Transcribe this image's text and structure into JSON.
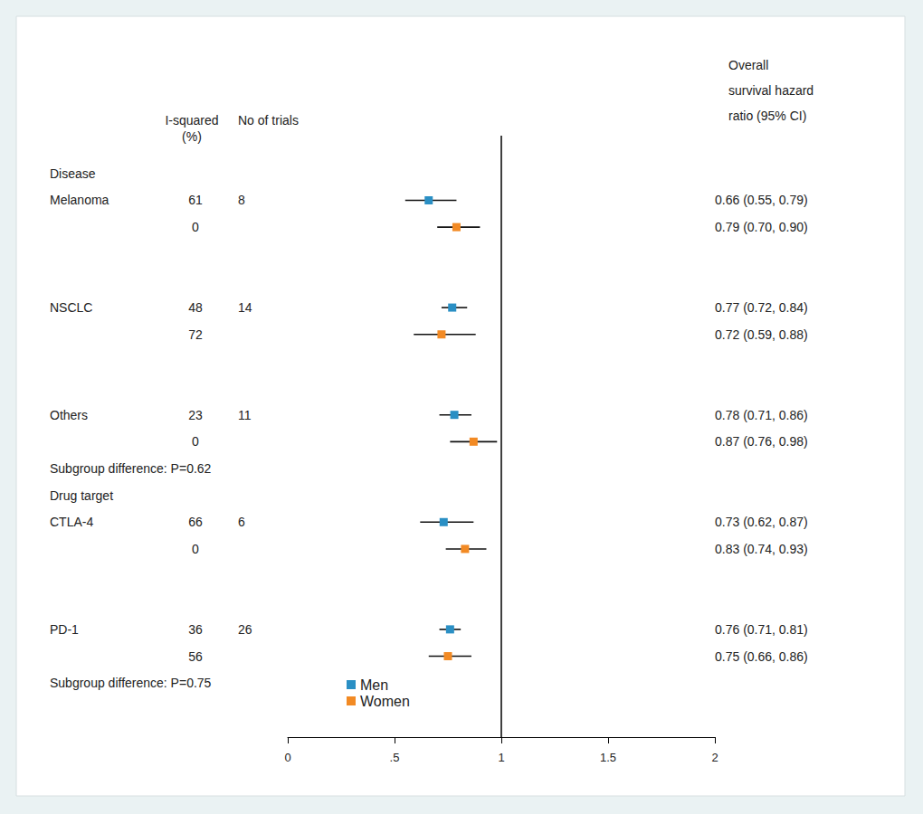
{
  "chart_data": {
    "type": "forest",
    "column_headers": {
      "i_squared": [
        "I-squared",
        "(%)"
      ],
      "trials": "No of trials",
      "estimate": [
        "Overall",
        "survival hazard",
        "ratio (95% CI)"
      ]
    },
    "categories": [
      "Disease",
      "Melanoma",
      null,
      null,
      null,
      "NSCLC",
      null,
      null,
      null,
      "Others",
      null,
      "Subgroup difference: P=0.62",
      "Drug target",
      "CTLA-4",
      null,
      null,
      null,
      "PD-1",
      null,
      "Subgroup difference: P=0.75"
    ],
    "trials": [
      null,
      8,
      null,
      null,
      null,
      14,
      null,
      null,
      null,
      11,
      null,
      null,
      null,
      6,
      null,
      null,
      null,
      26,
      null,
      null
    ],
    "series": [
      {
        "name": "Men",
        "color": "#2a8fc4",
        "values": [
          null,
          0.66,
          null,
          null,
          null,
          0.77,
          null,
          null,
          null,
          0.78,
          null,
          null,
          null,
          0.73,
          null,
          null,
          null,
          0.76,
          null,
          null
        ],
        "ci_low": [
          null,
          0.55,
          null,
          null,
          null,
          0.72,
          null,
          null,
          null,
          0.71,
          null,
          null,
          null,
          0.62,
          null,
          null,
          null,
          0.71,
          null,
          null
        ],
        "ci_high": [
          null,
          0.79,
          null,
          null,
          null,
          0.84,
          null,
          null,
          null,
          0.86,
          null,
          null,
          null,
          0.87,
          null,
          null,
          null,
          0.81,
          null,
          null
        ],
        "i_squared": [
          null,
          61,
          null,
          null,
          null,
          48,
          null,
          null,
          null,
          23,
          null,
          null,
          null,
          66,
          null,
          null,
          null,
          36,
          null,
          null
        ],
        "value_labels": [
          null,
          "0.66 (0.55, 0.79)",
          null,
          null,
          null,
          "0.77 (0.72, 0.84)",
          null,
          null,
          null,
          "0.78 (0.71, 0.86)",
          null,
          null,
          null,
          "0.73 (0.62, 0.87)",
          null,
          null,
          null,
          "0.76 (0.71, 0.81)",
          null,
          null
        ]
      },
      {
        "name": "Women",
        "color": "#f28a24",
        "values": [
          null,
          null,
          0.79,
          null,
          null,
          null,
          0.72,
          null,
          null,
          null,
          0.87,
          null,
          null,
          null,
          0.83,
          null,
          null,
          null,
          0.75,
          null
        ],
        "ci_low": [
          null,
          null,
          0.7,
          null,
          null,
          null,
          0.59,
          null,
          null,
          null,
          0.76,
          null,
          null,
          null,
          0.74,
          null,
          null,
          null,
          0.66,
          null
        ],
        "ci_high": [
          null,
          null,
          0.9,
          null,
          null,
          null,
          0.88,
          null,
          null,
          null,
          0.98,
          null,
          null,
          null,
          0.93,
          null,
          null,
          null,
          0.86,
          null
        ],
        "i_squared": [
          null,
          null,
          0,
          null,
          null,
          null,
          72,
          null,
          null,
          null,
          0,
          null,
          null,
          null,
          0,
          null,
          null,
          null,
          56,
          null
        ],
        "value_labels": [
          null,
          null,
          "0.79 (0.70, 0.90)",
          null,
          null,
          null,
          "0.72 (0.59, 0.88)",
          null,
          null,
          null,
          "0.87 (0.76, 0.98)",
          null,
          null,
          null,
          "0.83 (0.74, 0.93)",
          null,
          null,
          null,
          "0.75 (0.66, 0.86)",
          null
        ]
      }
    ],
    "reference_line": 1,
    "xlim": [
      0,
      2
    ],
    "xticks": [
      0,
      {
        "value": 0.5,
        "label": ".5"
      },
      1,
      1.5,
      2
    ],
    "grid": false,
    "legend": "bottom"
  }
}
